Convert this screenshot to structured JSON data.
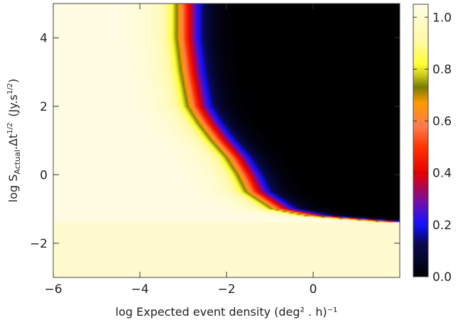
{
  "chart_data": {
    "type": "heatmap",
    "title": "",
    "xlabel": "log Expected event density (deg² . h)⁻¹",
    "ylabel_parts": {
      "prefix": "log S",
      "subscript": "Actual",
      "middle": ".Δt",
      "superscript": "1/2",
      "units_prefix": "(Jy.s",
      "units_superscript": "1/2",
      "units_suffix": ")"
    },
    "xlim": [
      -6.0,
      2.0
    ],
    "ylim": [
      -3.0,
      5.0
    ],
    "x_ticks": [
      -6,
      -4,
      -2,
      0
    ],
    "x_tick_labels": [
      "−6",
      "−4",
      "−2",
      "0"
    ],
    "y_ticks": [
      -2,
      0,
      2,
      4
    ],
    "y_tick_labels": [
      "−2",
      "0",
      "2",
      "4"
    ],
    "colorbar": {
      "range": [
        0.0,
        1.05
      ],
      "ticks": [
        0.0,
        0.2,
        0.4,
        0.6,
        0.8,
        1.0
      ],
      "tick_labels": [
        "0.0",
        "0.2",
        "0.4",
        "0.6",
        "0.8",
        "1.0"
      ],
      "colormap_stops": [
        {
          "v": 0.0,
          "color": "#000000"
        },
        {
          "v": 0.13,
          "color": "#0a0a55"
        },
        {
          "v": 0.2,
          "color": "#1111ff"
        },
        {
          "v": 0.28,
          "color": "#6a0fb0"
        },
        {
          "v": 0.4,
          "color": "#e80000"
        },
        {
          "v": 0.5,
          "color": "#ff3300"
        },
        {
          "v": 0.58,
          "color": "#ff7c50"
        },
        {
          "v": 0.67,
          "color": "#ff9a00"
        },
        {
          "v": 0.73,
          "color": "#7a7a00"
        },
        {
          "v": 0.78,
          "color": "#d0d020"
        },
        {
          "v": 0.82,
          "color": "#ffff33"
        },
        {
          "v": 0.9,
          "color": "#fffa9e"
        },
        {
          "v": 1.05,
          "color": "#fffce8"
        }
      ]
    },
    "transition_boundary": {
      "description_y": [
        5.0,
        4.0,
        3.0,
        2.0,
        1.5,
        1.0,
        0.5,
        0.0,
        -0.5,
        -1.0,
        -1.2,
        -1.3,
        -1.4
      ],
      "x_center": [
        -3.0,
        -3.0,
        -2.9,
        -2.75,
        -2.5,
        -2.2,
        -1.85,
        -1.6,
        -1.4,
        -0.8,
        0.0,
        1.0,
        2.0
      ]
    },
    "grid": false,
    "legend": "colorbar-right"
  }
}
